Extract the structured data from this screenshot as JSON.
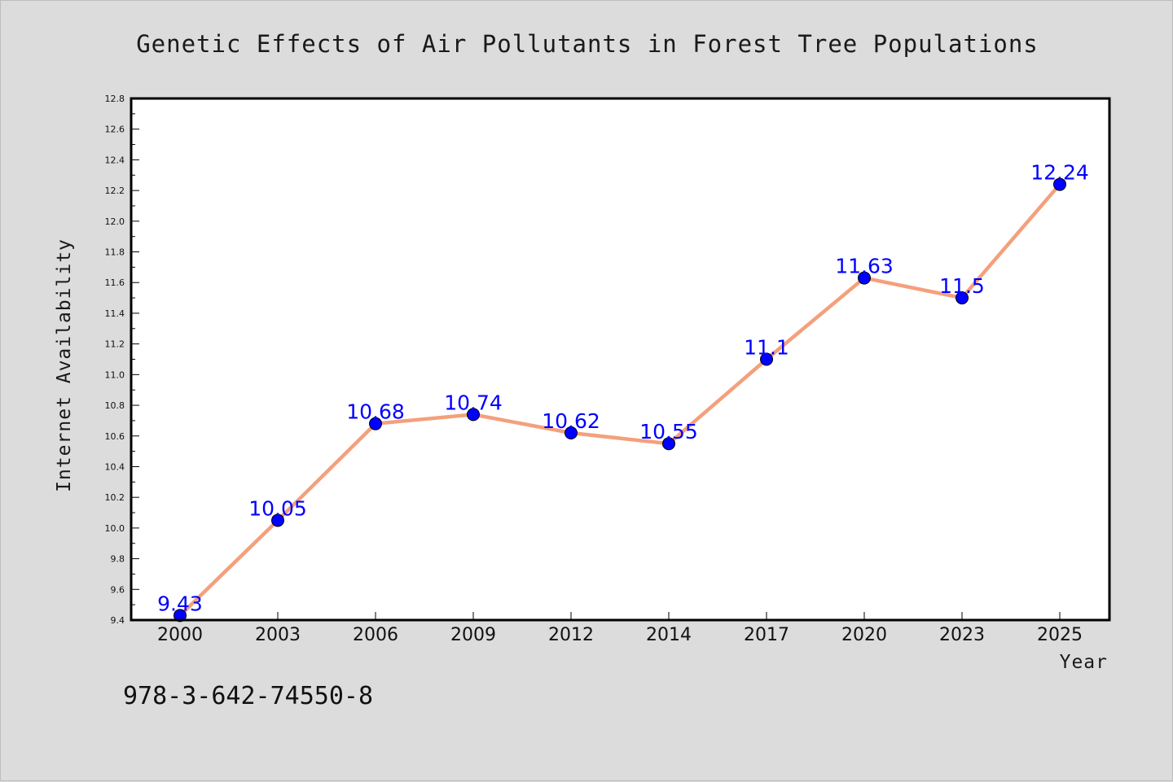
{
  "chart_data": {
    "type": "line",
    "title": "Genetic Effects of Air Pollutants in Forest Tree Populations",
    "xlabel": "Year",
    "ylabel": "Internet Availability",
    "categories": [
      "2000",
      "2003",
      "2006",
      "2009",
      "2012",
      "2014",
      "2017",
      "2020",
      "2023",
      "2025"
    ],
    "values": [
      9.43,
      10.05,
      10.68,
      10.74,
      10.62,
      10.55,
      11.1,
      11.63,
      11.5,
      12.24
    ],
    "data_labels": [
      "9.43",
      "10.05",
      "10.68",
      "10.74",
      "10.62",
      "10.55",
      "11.1",
      "11.63",
      "11.5",
      "12.24"
    ],
    "ylim": [
      9.4,
      12.8
    ],
    "yticks": [
      "9.4",
      "9.6",
      "9.8",
      "10.0",
      "10.2",
      "10.4",
      "10.6",
      "10.8",
      "11.0",
      "11.2",
      "11.4",
      "11.6",
      "11.8",
      "12.0",
      "12.2",
      "12.4",
      "12.6",
      "12.8"
    ],
    "grid": false,
    "legend": "none",
    "line_color": "#f4a07c",
    "marker_color": "#0000ff",
    "label_color": "#0000ff"
  },
  "footer": {
    "isbn": "978-3-642-74550-8"
  }
}
